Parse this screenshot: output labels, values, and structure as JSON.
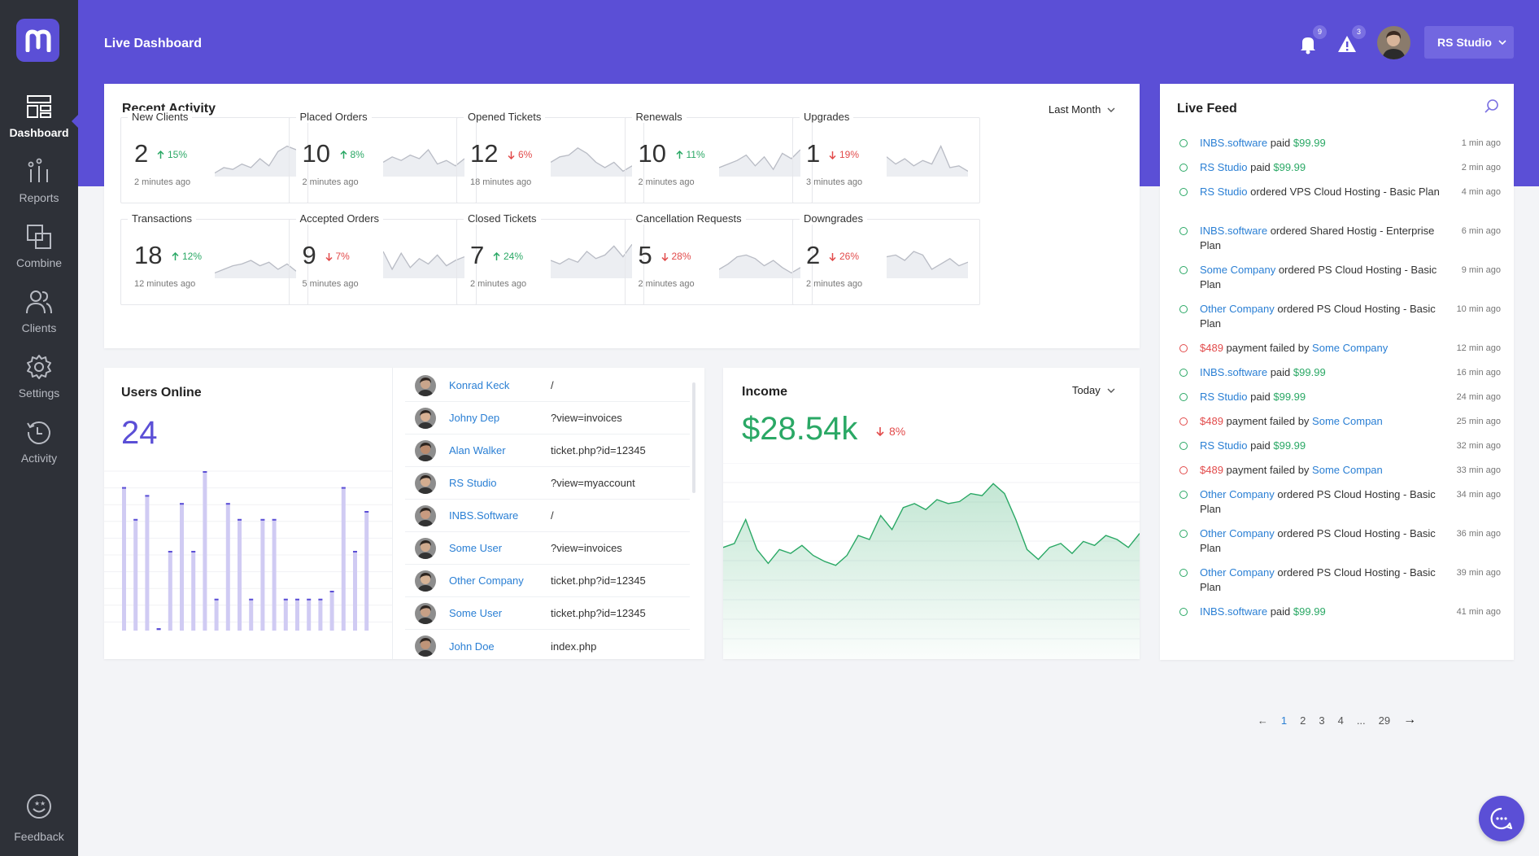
{
  "app": {
    "title": "Live Dashboard"
  },
  "sidebar": {
    "items": [
      {
        "label": "Dashboard",
        "icon": "dashboard-icon",
        "active": true
      },
      {
        "label": "Reports",
        "icon": "bar-chart-icon"
      },
      {
        "label": "Combine",
        "icon": "combine-icon"
      },
      {
        "label": "Clients",
        "icon": "users-icon"
      },
      {
        "label": "Settings",
        "icon": "gear-icon"
      },
      {
        "label": "Activity",
        "icon": "history-icon"
      }
    ],
    "feedback": {
      "label": "Feedback",
      "icon": "smiley-icon"
    }
  },
  "header": {
    "notifications_count": "9",
    "alerts_count": "3",
    "account_label": "RS Studio"
  },
  "recent_activity": {
    "title": "Recent Activity",
    "period": "Last Month",
    "tiles": [
      {
        "label": "New Clients",
        "value": "2",
        "change": "15%",
        "direction": "up",
        "time": "2 minutes ago"
      },
      {
        "label": "Placed Orders",
        "value": "10",
        "change": "8%",
        "direction": "up",
        "time": "2 minutes ago"
      },
      {
        "label": "Opened Tickets",
        "value": "12",
        "change": "6%",
        "direction": "down",
        "time": "18 minutes ago"
      },
      {
        "label": "Renewals",
        "value": "10",
        "change": "11%",
        "direction": "up",
        "time": "2 minutes ago"
      },
      {
        "label": "Upgrades",
        "value": "1",
        "change": "19%",
        "direction": "down",
        "time": "3 minutes ago"
      },
      {
        "label": "Transactions",
        "value": "18",
        "change": "12%",
        "direction": "up",
        "time": "12 minutes ago"
      },
      {
        "label": "Accepted Orders",
        "value": "9",
        "change": "7%",
        "direction": "down",
        "time": "5 minutes ago"
      },
      {
        "label": "Closed Tickets",
        "value": "7",
        "change": "24%",
        "direction": "up",
        "time": "2 minutes ago"
      },
      {
        "label": "Cancellation Requests",
        "value": "5",
        "change": "28%",
        "direction": "down",
        "time": "2 minutes ago"
      },
      {
        "label": "Downgrades",
        "value": "2",
        "change": "26%",
        "direction": "down",
        "time": "2 minutes ago"
      }
    ]
  },
  "users_online": {
    "title": "Users Online",
    "count": "24",
    "bars": [
      90,
      70,
      85,
      0,
      50,
      80,
      50,
      100,
      20,
      80,
      70,
      20,
      70,
      70,
      20,
      20,
      20,
      20,
      25,
      90,
      50,
      75
    ],
    "users": [
      {
        "name": "Konrad Keck",
        "page": "/"
      },
      {
        "name": "Johny Dep",
        "page": "?view=invoices"
      },
      {
        "name": "Alan Walker",
        "page": "ticket.php?id=12345"
      },
      {
        "name": "RS Studio",
        "page": "?view=myaccount"
      },
      {
        "name": "INBS.Software",
        "page": "/"
      },
      {
        "name": "Some User",
        "page": "?view=invoices"
      },
      {
        "name": "Other Company",
        "page": "ticket.php?id=12345"
      },
      {
        "name": "Some User",
        "page": "ticket.php?id=12345"
      },
      {
        "name": "John Doe",
        "page": "index.php"
      }
    ]
  },
  "income": {
    "title": "Income",
    "period": "Today",
    "value": "$28.54k",
    "change": "8%",
    "direction": "down",
    "series": [
      56,
      58,
      70,
      55,
      48,
      55,
      53,
      57,
      52,
      49,
      47,
      52,
      62,
      60,
      72,
      65,
      76,
      78,
      75,
      80,
      78,
      79,
      83,
      82,
      88,
      83,
      70,
      55,
      50,
      56,
      58,
      53,
      59,
      57,
      62,
      60,
      56,
      63
    ]
  },
  "live_feed": {
    "title": "Live Feed",
    "items": [
      {
        "parts": [
          {
            "t": "INBS.software",
            "c": "lnk"
          },
          {
            "t": " paid ",
            "c": ""
          },
          {
            "t": "$99.99",
            "c": "pos"
          }
        ],
        "time": "1 min ago",
        "status": "ok"
      },
      {
        "parts": [
          {
            "t": "RS Studio",
            "c": "lnk"
          },
          {
            "t": " paid ",
            "c": ""
          },
          {
            "t": "$99.99",
            "c": "pos"
          }
        ],
        "time": "2 min ago",
        "status": "ok"
      },
      {
        "parts": [
          {
            "t": "RS Studio",
            "c": "lnk"
          },
          {
            "t": " ordered VPS Cloud Hosting - Basic Plan",
            "c": ""
          }
        ],
        "time": "4 min ago",
        "status": "ok"
      },
      {
        "parts": [
          {
            "t": "INBS.software",
            "c": "lnk"
          },
          {
            "t": " ordered Shared Hostig  - Enterprise Plan",
            "c": ""
          }
        ],
        "time": "6 min ago",
        "status": "ok"
      },
      {
        "parts": [
          {
            "t": "Some Company",
            "c": "lnk"
          },
          {
            "t": " ordered PS Cloud Hosting - Basic Plan",
            "c": ""
          }
        ],
        "time": "9 min ago",
        "status": "ok"
      },
      {
        "parts": [
          {
            "t": "Other Company",
            "c": "lnk"
          },
          {
            "t": " ordered PS Cloud Hosting - Basic Plan",
            "c": ""
          }
        ],
        "time": "10 min ago",
        "status": "ok"
      },
      {
        "parts": [
          {
            "t": "$489",
            "c": "neg"
          },
          {
            "t": " payment failed by ",
            "c": ""
          },
          {
            "t": "Some Company",
            "c": "lnk"
          }
        ],
        "time": "12 min ago",
        "status": "bad"
      },
      {
        "parts": [
          {
            "t": "INBS.software",
            "c": "lnk"
          },
          {
            "t": " paid ",
            "c": ""
          },
          {
            "t": "$99.99",
            "c": "pos"
          }
        ],
        "time": "16 min ago",
        "status": "ok"
      },
      {
        "parts": [
          {
            "t": "RS Studio",
            "c": "lnk"
          },
          {
            "t": " paid ",
            "c": ""
          },
          {
            "t": "$99.99",
            "c": "pos"
          }
        ],
        "time": "24 min ago",
        "status": "ok"
      },
      {
        "parts": [
          {
            "t": "$489",
            "c": "neg"
          },
          {
            "t": " payment failed by ",
            "c": ""
          },
          {
            "t": "Some Compan",
            "c": "lnk"
          }
        ],
        "time": "25 min ago",
        "status": "bad"
      },
      {
        "parts": [
          {
            "t": "RS Studio",
            "c": "lnk"
          },
          {
            "t": " paid ",
            "c": ""
          },
          {
            "t": "$99.99",
            "c": "pos"
          }
        ],
        "time": "32 min ago",
        "status": "ok"
      },
      {
        "parts": [
          {
            "t": "$489",
            "c": "neg"
          },
          {
            "t": " payment failed by ",
            "c": ""
          },
          {
            "t": "Some Compan",
            "c": "lnk"
          }
        ],
        "time": "33 min ago",
        "status": "bad"
      },
      {
        "parts": [
          {
            "t": "Other Company",
            "c": "lnk"
          },
          {
            "t": " ordered PS Cloud Hosting - Basic Plan",
            "c": ""
          }
        ],
        "time": "34 min ago",
        "status": "ok"
      },
      {
        "parts": [
          {
            "t": "Other Company",
            "c": "lnk"
          },
          {
            "t": " ordered PS Cloud Hosting - Basic Plan",
            "c": ""
          }
        ],
        "time": "36 min ago",
        "status": "ok"
      },
      {
        "parts": [
          {
            "t": "Other Company",
            "c": "lnk"
          },
          {
            "t": " ordered PS Cloud Hosting - Basic Plan",
            "c": ""
          }
        ],
        "time": "39 min ago",
        "status": "ok"
      },
      {
        "parts": [
          {
            "t": "INBS.software",
            "c": "lnk"
          },
          {
            "t": " paid ",
            "c": ""
          },
          {
            "t": "$99.99",
            "c": "pos"
          }
        ],
        "time": "41 min ago",
        "status": "ok"
      }
    ],
    "pagination": {
      "prev": "←",
      "pages": [
        "1",
        "2",
        "3",
        "4",
        "...",
        "29"
      ],
      "current": "1",
      "next": "→"
    }
  },
  "colors": {
    "brand": "#5b4fd6",
    "sidebar": "#2e3138",
    "positive": "#2aa865",
    "negative": "#e24b4b",
    "link": "#2a7fd4"
  }
}
